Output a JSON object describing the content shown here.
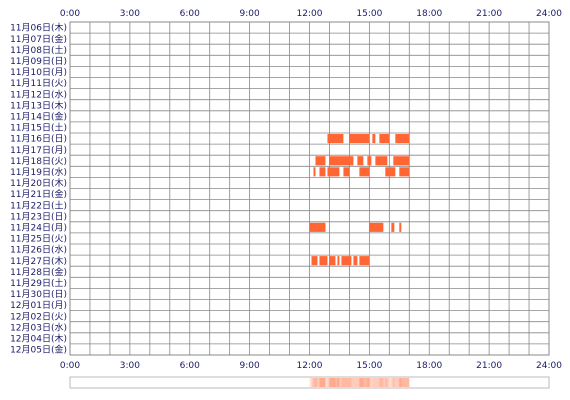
{
  "chart_data": {
    "type": "heatmap",
    "x_axis": {
      "ticks": [
        "0:00",
        "3:00",
        "6:00",
        "9:00",
        "12:00",
        "15:00",
        "18:00",
        "21:00",
        "24:00"
      ],
      "range_hours": [
        0,
        24
      ]
    },
    "rows": [
      "11月06日(木)",
      "11月07日(金)",
      "11月08日(土)",
      "11月09日(日)",
      "11月10日(月)",
      "11月11日(火)",
      "11月12日(水)",
      "11月13日(木)",
      "11月14日(金)",
      "11月15日(土)",
      "11月16日(日)",
      "11月17日(月)",
      "11月18日(火)",
      "11月19日(水)",
      "11月20日(木)",
      "11月21日(金)",
      "11月22日(土)",
      "11月23日(日)",
      "11月24日(月)",
      "11月25日(火)",
      "11月26日(水)",
      "11月27日(木)",
      "11月28日(金)",
      "11月29日(土)",
      "11月30日(日)",
      "12月01日(月)",
      "12月02日(火)",
      "12月03日(水)",
      "12月04日(木)",
      "12月05日(金)"
    ],
    "activity": [
      {
        "day": "11月16日(日)",
        "intervals": [
          [
            12.9,
            13.7
          ],
          [
            14.0,
            15.0
          ],
          [
            15.15,
            15.3
          ],
          [
            15.5,
            16.0
          ],
          [
            16.3,
            17.0
          ]
        ]
      },
      {
        "day": "11月18日(火)",
        "intervals": [
          [
            12.3,
            12.8
          ],
          [
            13.0,
            14.2
          ],
          [
            14.4,
            14.7
          ],
          [
            14.9,
            15.1
          ],
          [
            15.3,
            15.9
          ],
          [
            16.2,
            17.0
          ]
        ]
      },
      {
        "day": "11月19日(水)",
        "intervals": [
          [
            12.2,
            12.3
          ],
          [
            12.5,
            12.8
          ],
          [
            12.9,
            13.5
          ],
          [
            13.7,
            14.0
          ],
          [
            14.5,
            15.0
          ],
          [
            15.8,
            16.3
          ],
          [
            16.5,
            17.0
          ]
        ]
      },
      {
        "day": "11月24日(月)",
        "intervals": [
          [
            12.0,
            12.8
          ],
          [
            15.0,
            15.7
          ],
          [
            16.1,
            16.25
          ],
          [
            16.5,
            16.6
          ]
        ]
      },
      {
        "day": "11月27日(木)",
        "intervals": [
          [
            12.1,
            12.4
          ],
          [
            12.5,
            12.9
          ],
          [
            13.0,
            13.3
          ],
          [
            13.4,
            13.5
          ],
          [
            13.6,
            14.1
          ],
          [
            14.2,
            14.4
          ],
          [
            14.5,
            15.0
          ]
        ]
      }
    ],
    "colors": {
      "activity": "#ff6633",
      "grid": "#888888",
      "text": "#1a1a66",
      "summary_light": "#ffe3d6"
    }
  }
}
